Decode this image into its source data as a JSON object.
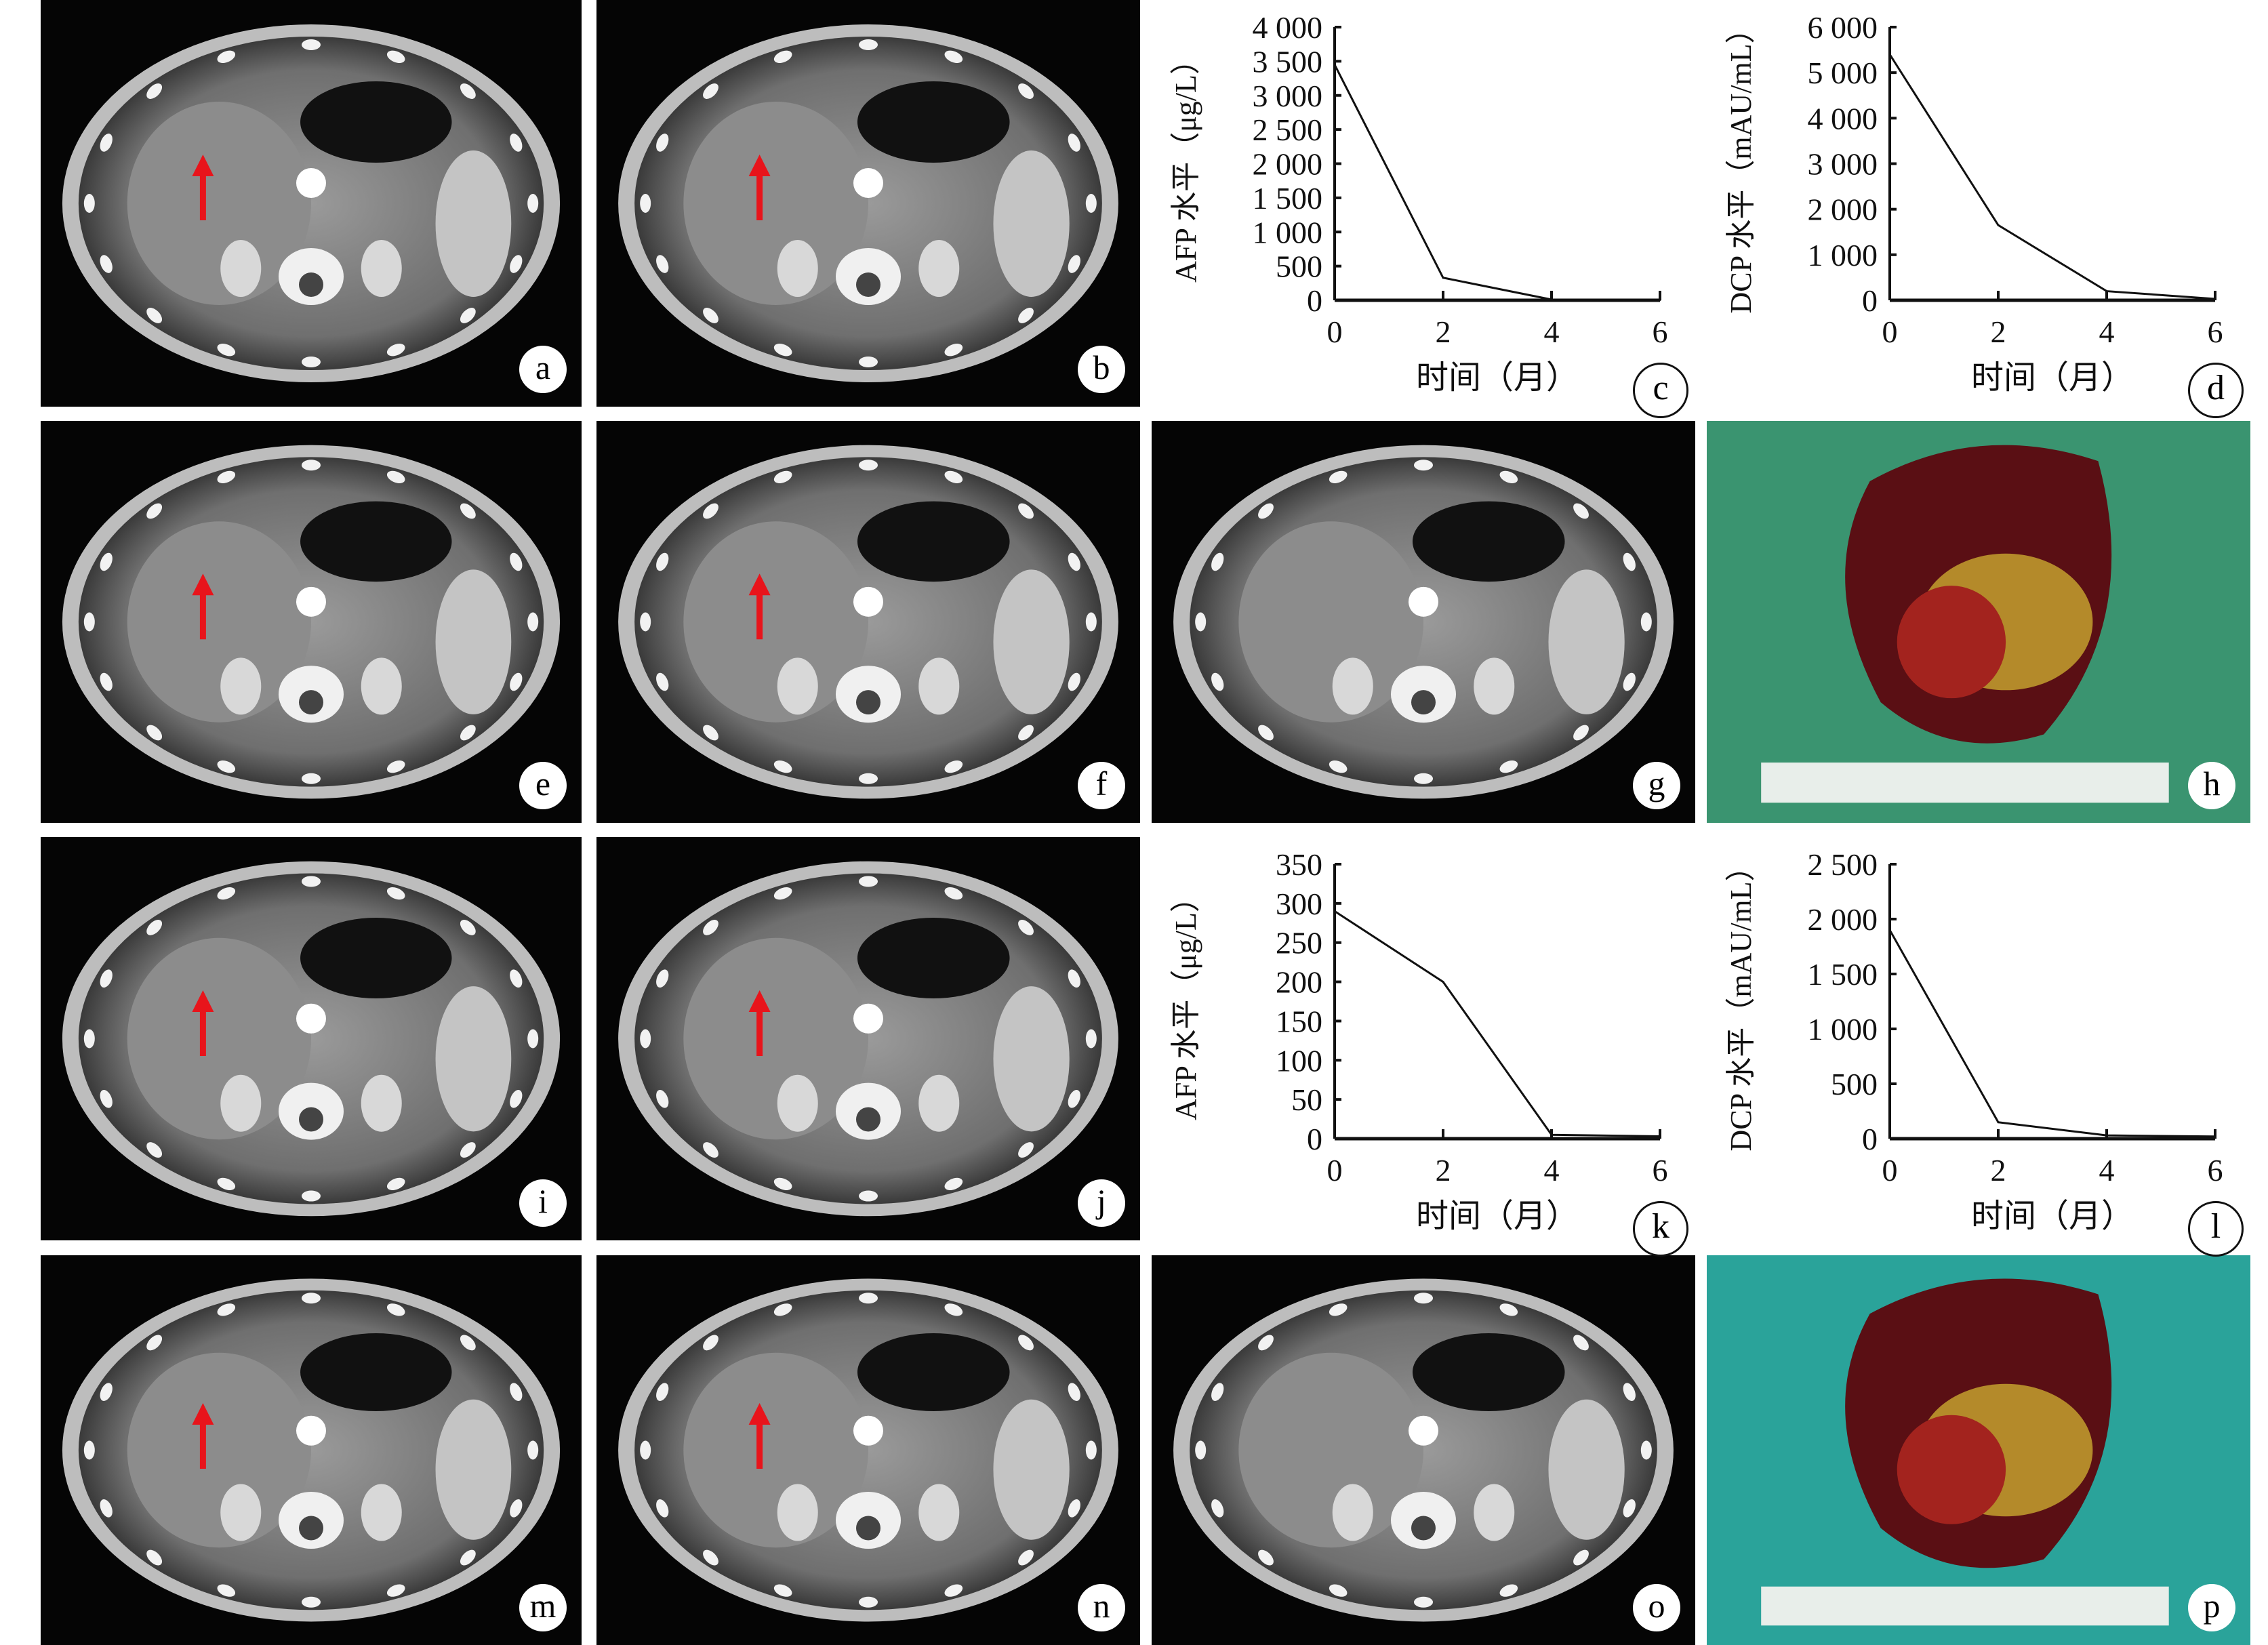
{
  "panels": {
    "ct": [
      {
        "label": "a",
        "arrow": true
      },
      {
        "label": "b",
        "arrow": true
      },
      {
        "label": "e",
        "arrow": true
      },
      {
        "label": "f",
        "arrow": true
      },
      {
        "label": "g",
        "arrow": false
      },
      {
        "label": "i",
        "arrow": true
      },
      {
        "label": "j",
        "arrow": true
      },
      {
        "label": "m",
        "arrow": true
      },
      {
        "label": "n",
        "arrow": true
      },
      {
        "label": "o",
        "arrow": false
      }
    ],
    "photos": [
      {
        "label": "h",
        "background": "#3a9470"
      },
      {
        "label": "p",
        "background": "#2aa39a"
      }
    ],
    "arrow_color": "#e8141b"
  },
  "chart_data": [
    {
      "panel": "c",
      "type": "line",
      "x": [
        0,
        2,
        4,
        6
      ],
      "values": [
        3450,
        330,
        10,
        5
      ],
      "ylabel": "AFP 水平（μg/L）",
      "xlabel": "时间（月）",
      "ylim": [
        0,
        4000
      ],
      "yticks": [
        "0",
        "500",
        "1 000",
        "1 500",
        "2 000",
        "2 500",
        "3 000",
        "3 500",
        "4 000"
      ],
      "ytickvals": [
        0,
        500,
        1000,
        1500,
        2000,
        2500,
        3000,
        3500,
        4000
      ],
      "xticks": [
        "0",
        "2",
        "4",
        "6"
      ],
      "grid": false
    },
    {
      "panel": "d",
      "type": "line",
      "x": [
        0,
        2,
        4,
        6
      ],
      "values": [
        5400,
        1650,
        200,
        30
      ],
      "ylabel": "DCP 水平（mAU/mL）",
      "xlabel": "时间（月）",
      "ylim": [
        0,
        6000
      ],
      "yticks": [
        "0",
        "1 000",
        "2 000",
        "3 000",
        "4 000",
        "5 000",
        "6 000"
      ],
      "ytickvals": [
        0,
        1000,
        2000,
        3000,
        4000,
        5000,
        6000
      ],
      "xticks": [
        "0",
        "2",
        "4",
        "6"
      ],
      "grid": false
    },
    {
      "panel": "k",
      "type": "line",
      "x": [
        0,
        2,
        4,
        6
      ],
      "values": [
        290,
        200,
        5,
        3
      ],
      "ylabel": "AFP 水平（μg/L）",
      "xlabel": "时间（月）",
      "ylim": [
        0,
        350
      ],
      "yticks": [
        "0",
        "50",
        "100",
        "150",
        "200",
        "250",
        "300",
        "350"
      ],
      "ytickvals": [
        0,
        50,
        100,
        150,
        200,
        250,
        300,
        350
      ],
      "xticks": [
        "0",
        "2",
        "4",
        "6"
      ],
      "grid": false
    },
    {
      "panel": "l",
      "type": "line",
      "x": [
        0,
        2,
        4,
        6
      ],
      "values": [
        1900,
        150,
        30,
        20
      ],
      "ylabel": "DCP 水平（mAU/mL）",
      "xlabel": "时间（月）",
      "ylim": [
        0,
        2500
      ],
      "yticks": [
        "0",
        "500",
        "1 000",
        "1 500",
        "2 000",
        "2 500"
      ],
      "ytickvals": [
        0,
        500,
        1000,
        1500,
        2000,
        2500
      ],
      "xticks": [
        "0",
        "2",
        "4",
        "6"
      ],
      "grid": false
    }
  ]
}
